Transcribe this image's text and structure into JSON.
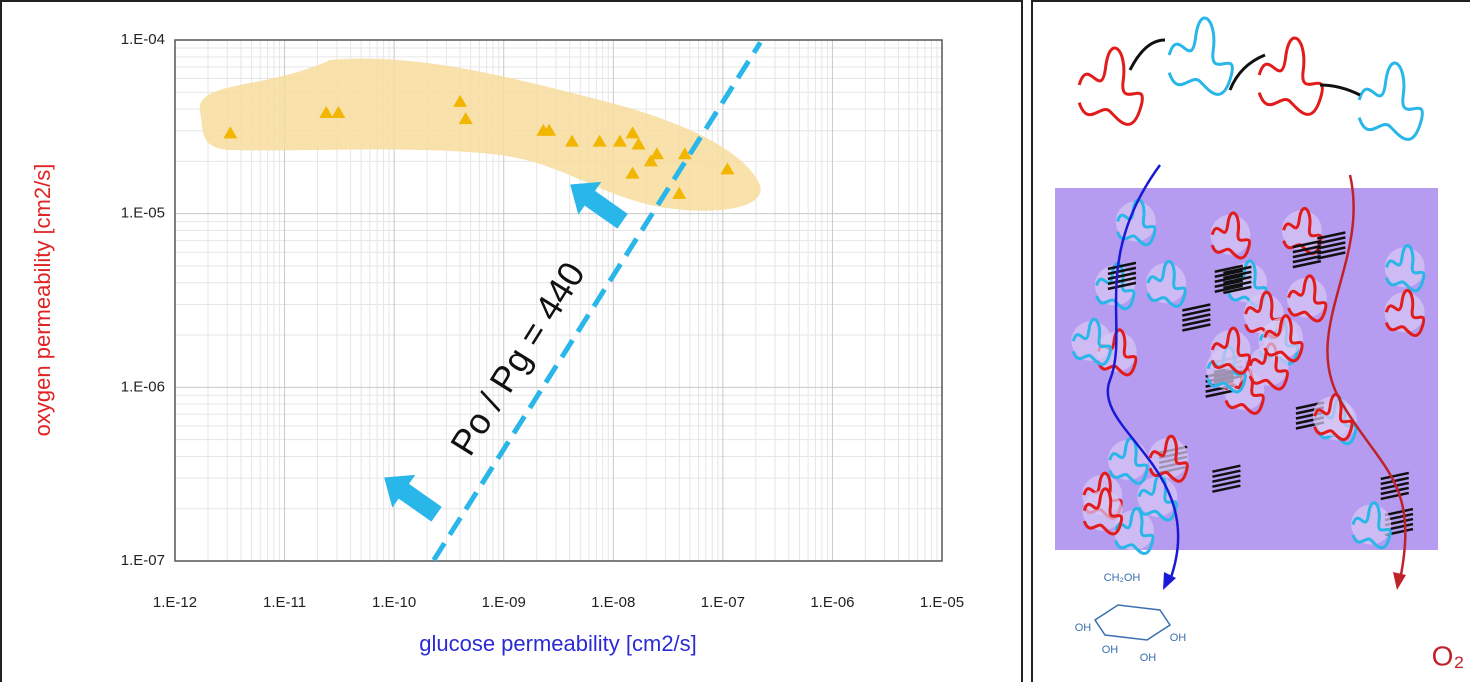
{
  "chart_data": {
    "type": "scatter",
    "x_label": "glucose permeability [cm2/s]",
    "y_label": "oxygen permeability [cm2/s]",
    "x_log": true,
    "y_log": true,
    "grid": true,
    "xlim": [
      1e-12,
      1e-05
    ],
    "ylim": [
      1e-07,
      0.0001
    ],
    "xticks": [
      {
        "value": 1e-12,
        "label": "1.E-12"
      },
      {
        "value": 1e-11,
        "label": "1.E-11"
      },
      {
        "value": 1e-10,
        "label": "1.E-10"
      },
      {
        "value": 1e-09,
        "label": "1.E-09"
      },
      {
        "value": 1e-08,
        "label": "1.E-08"
      },
      {
        "value": 1e-07,
        "label": "1.E-07"
      },
      {
        "value": 1e-06,
        "label": "1.E-06"
      },
      {
        "value": 1e-05,
        "label": "1.E-05"
      }
    ],
    "yticks": [
      {
        "value": 1e-07,
        "label": "1.E-07"
      },
      {
        "value": 1e-06,
        "label": "1.E-06"
      },
      {
        "value": 1e-05,
        "label": "1.E-05"
      },
      {
        "value": 0.0001,
        "label": "1.E-04"
      }
    ],
    "color": "#f2b600",
    "x": [
      3.2e-12,
      2.4e-11,
      3.1e-11,
      4e-10,
      4.5e-10,
      2.3e-09,
      2.6e-09,
      4.2e-09,
      7.5e-09,
      1.15e-08,
      1.5e-08,
      1.7e-08,
      1.5e-08,
      2.2e-08,
      2.5e-08,
      4.5e-08,
      4e-08,
      1.1e-07
    ],
    "values": [
      2.9e-05,
      3.8e-05,
      3.8e-05,
      4.4e-05,
      3.5e-05,
      3e-05,
      3e-05,
      2.6e-05,
      2.6e-05,
      2.6e-05,
      2.9e-05,
      2.5e-05,
      1.7e-05,
      2e-05,
      2.2e-05,
      2.2e-05,
      1.3e-05,
      1.8e-05
    ],
    "reference_line": {
      "label": "Po / Pg = 440",
      "ratio": 440,
      "x": [
        2.3e-10,
        2.2e-07
      ],
      "color": "#29b6e8"
    }
  },
  "diagram": {
    "oxygen_label": "O₂",
    "glucose_labels": [
      "CH₂OH",
      "OH",
      "OH",
      "OH",
      "OH"
    ]
  }
}
